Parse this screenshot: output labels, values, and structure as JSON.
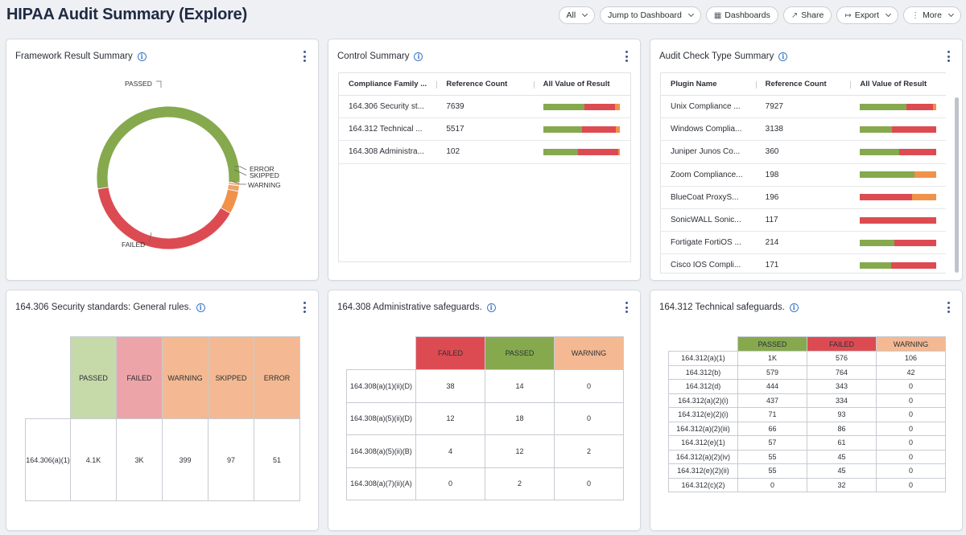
{
  "header": {
    "title": "HIPAA Audit Summary (Explore)"
  },
  "toolbar": {
    "filter_label": "All",
    "jump_label": "Jump to Dashboard",
    "dashboards_label": "Dashboards",
    "share_label": "Share",
    "export_label": "Export",
    "more_label": "More"
  },
  "colors": {
    "passed": "#86a94e",
    "failed": "#dd4b52",
    "warning": "#f0924a",
    "skipped": "#e9a46e",
    "error": "#f4bb8b"
  },
  "framework": {
    "title": "Framework Result Summary",
    "labels": {
      "passed": "PASSED",
      "error": "ERROR",
      "skipped": "SKIPPED",
      "warning": "WARNING",
      "failed": "FAILED"
    },
    "chart_data": {
      "type": "pie",
      "categories": [
        "PASSED",
        "FAILED",
        "WARNING",
        "SKIPPED",
        "ERROR"
      ],
      "values": [
        4100,
        3000,
        399,
        97,
        51
      ],
      "donut": true
    }
  },
  "control": {
    "title": "Control Summary",
    "columns": [
      "Compliance Family ...",
      "Reference Count",
      "All Value of Result"
    ],
    "rows": [
      {
        "family": "164.306 Security st...",
        "count": "7639",
        "result": {
          "passed": 0.54,
          "failed": 0.4,
          "warning": 0.06
        }
      },
      {
        "family": "164.312 Technical ...",
        "count": "5517",
        "result": {
          "passed": 0.51,
          "failed": 0.44,
          "warning": 0.05
        }
      },
      {
        "family": "164.308 Administra...",
        "count": "102",
        "result": {
          "passed": 0.46,
          "failed": 0.52,
          "warning": 0.02
        }
      }
    ]
  },
  "audit": {
    "title": "Audit Check Type Summary",
    "columns": [
      "Plugin Name",
      "Reference Count",
      "All Value of Result"
    ],
    "rows": [
      {
        "name": "Unix Compliance ...",
        "count": "7927",
        "result": {
          "passed": 0.61,
          "failed": 0.34,
          "warning": 0.05
        }
      },
      {
        "name": "Windows Complia...",
        "count": "3138",
        "result": {
          "passed": 0.42,
          "failed": 0.58,
          "warning": 0
        }
      },
      {
        "name": "Juniper Junos Co...",
        "count": "360",
        "result": {
          "passed": 0.51,
          "failed": 0.49,
          "warning": 0
        }
      },
      {
        "name": "Zoom Compliance...",
        "count": "198",
        "result": {
          "passed": 0.71,
          "failed": 0,
          "warning": 0.29
        }
      },
      {
        "name": "BlueCoat ProxyS...",
        "count": "196",
        "result": {
          "passed": 0,
          "failed": 0.68,
          "warning": 0.32
        }
      },
      {
        "name": "SonicWALL Sonic...",
        "count": "117",
        "result": {
          "passed": 0,
          "failed": 1.0,
          "warning": 0
        }
      },
      {
        "name": "Fortigate FortiOS ...",
        "count": "214",
        "result": {
          "passed": 0.45,
          "failed": 0.55,
          "warning": 0
        }
      },
      {
        "name": "Cisco IOS Compli...",
        "count": "171",
        "result": {
          "passed": 0.41,
          "failed": 0.59,
          "warning": 0
        }
      }
    ]
  },
  "security": {
    "title": "164.306 Security standards: General rules.",
    "columns": [
      "PASSED",
      "FAILED",
      "WARNING",
      "SKIPPED",
      "ERROR"
    ],
    "rows": [
      {
        "label": "164.306(a)(1)",
        "values": [
          "4.1K",
          "3K",
          "399",
          "97",
          "51"
        ]
      }
    ]
  },
  "admin": {
    "title": "164.308 Administrative safeguards.",
    "columns": [
      "FAILED",
      "PASSED",
      "WARNING"
    ],
    "rows": [
      {
        "label": "164.308(a)(1)(ii)(D)",
        "values": [
          "38",
          "14",
          "0"
        ]
      },
      {
        "label": "164.308(a)(5)(ii)(D)",
        "values": [
          "12",
          "18",
          "0"
        ]
      },
      {
        "label": "164.308(a)(5)(ii)(B)",
        "values": [
          "4",
          "12",
          "2"
        ]
      },
      {
        "label": "164.308(a)(7)(ii)(A)",
        "values": [
          "0",
          "2",
          "0"
        ]
      }
    ]
  },
  "technical": {
    "title": "164.312 Technical safeguards.",
    "columns": [
      "PASSED",
      "FAILED",
      "WARNING"
    ],
    "rows": [
      {
        "label": "164.312(a)(1)",
        "values": [
          "1K",
          "576",
          "106"
        ]
      },
      {
        "label": "164.312(b)",
        "values": [
          "579",
          "764",
          "42"
        ]
      },
      {
        "label": "164.312(d)",
        "values": [
          "444",
          "343",
          "0"
        ]
      },
      {
        "label": "164.312(a)(2)(i)",
        "values": [
          "437",
          "334",
          "0"
        ]
      },
      {
        "label": "164.312(e)(2)(i)",
        "values": [
          "71",
          "93",
          "0"
        ]
      },
      {
        "label": "164.312(a)(2)(iii)",
        "values": [
          "66",
          "86",
          "0"
        ]
      },
      {
        "label": "164.312(e)(1)",
        "values": [
          "57",
          "61",
          "0"
        ]
      },
      {
        "label": "164.312(a)(2)(iv)",
        "values": [
          "55",
          "45",
          "0"
        ]
      },
      {
        "label": "164.312(e)(2)(ii)",
        "values": [
          "55",
          "45",
          "0"
        ]
      },
      {
        "label": "164.312(c)(2)",
        "values": [
          "0",
          "32",
          "0"
        ]
      }
    ]
  }
}
